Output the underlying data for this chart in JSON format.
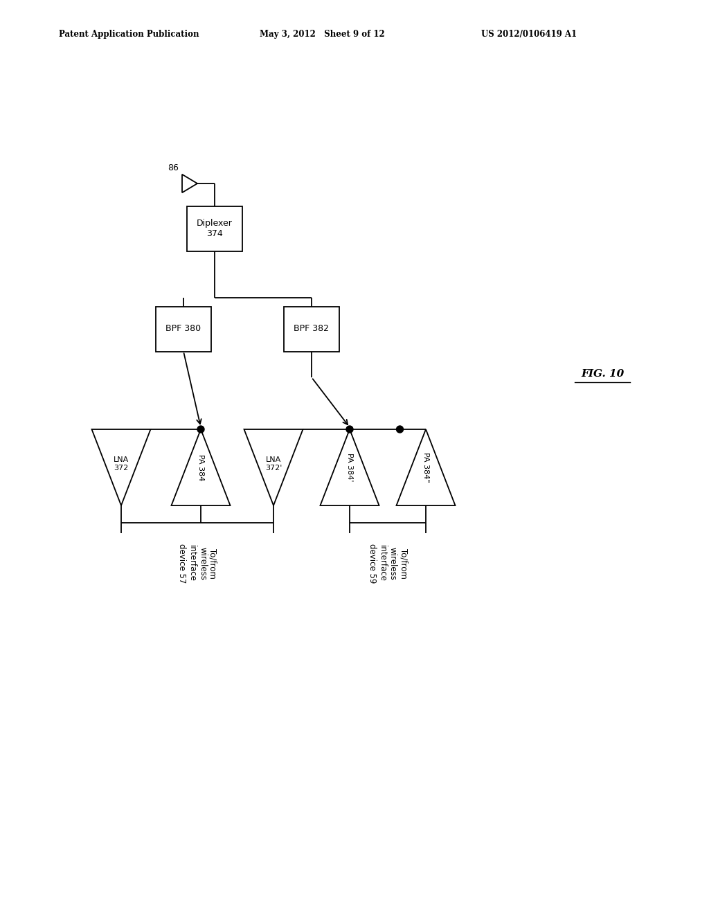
{
  "bg_color": "#ffffff",
  "header_left": "Patent Application Publication",
  "header_mid": "May 3, 2012   Sheet 9 of 12",
  "header_right": "US 2012/0106419 A1",
  "fig_label": "FIG. 10",
  "antenna_label": "86",
  "diplexer_label": "Diplexer\n374",
  "bpf_left_label": "BPF 380",
  "bpf_right_label": "BPF 382",
  "lna1_label": "LNA\n372",
  "pa1_label": "PA 384",
  "lna2_label": "LNA\n372'",
  "pa2_label": "PA 384'",
  "pa3_label": "PA 384\"",
  "bus1_label": "To/from\nwireless\ninterface\ndevice 57",
  "bus2_label": "To/from\nwireless\ninterface\ndevice 59"
}
